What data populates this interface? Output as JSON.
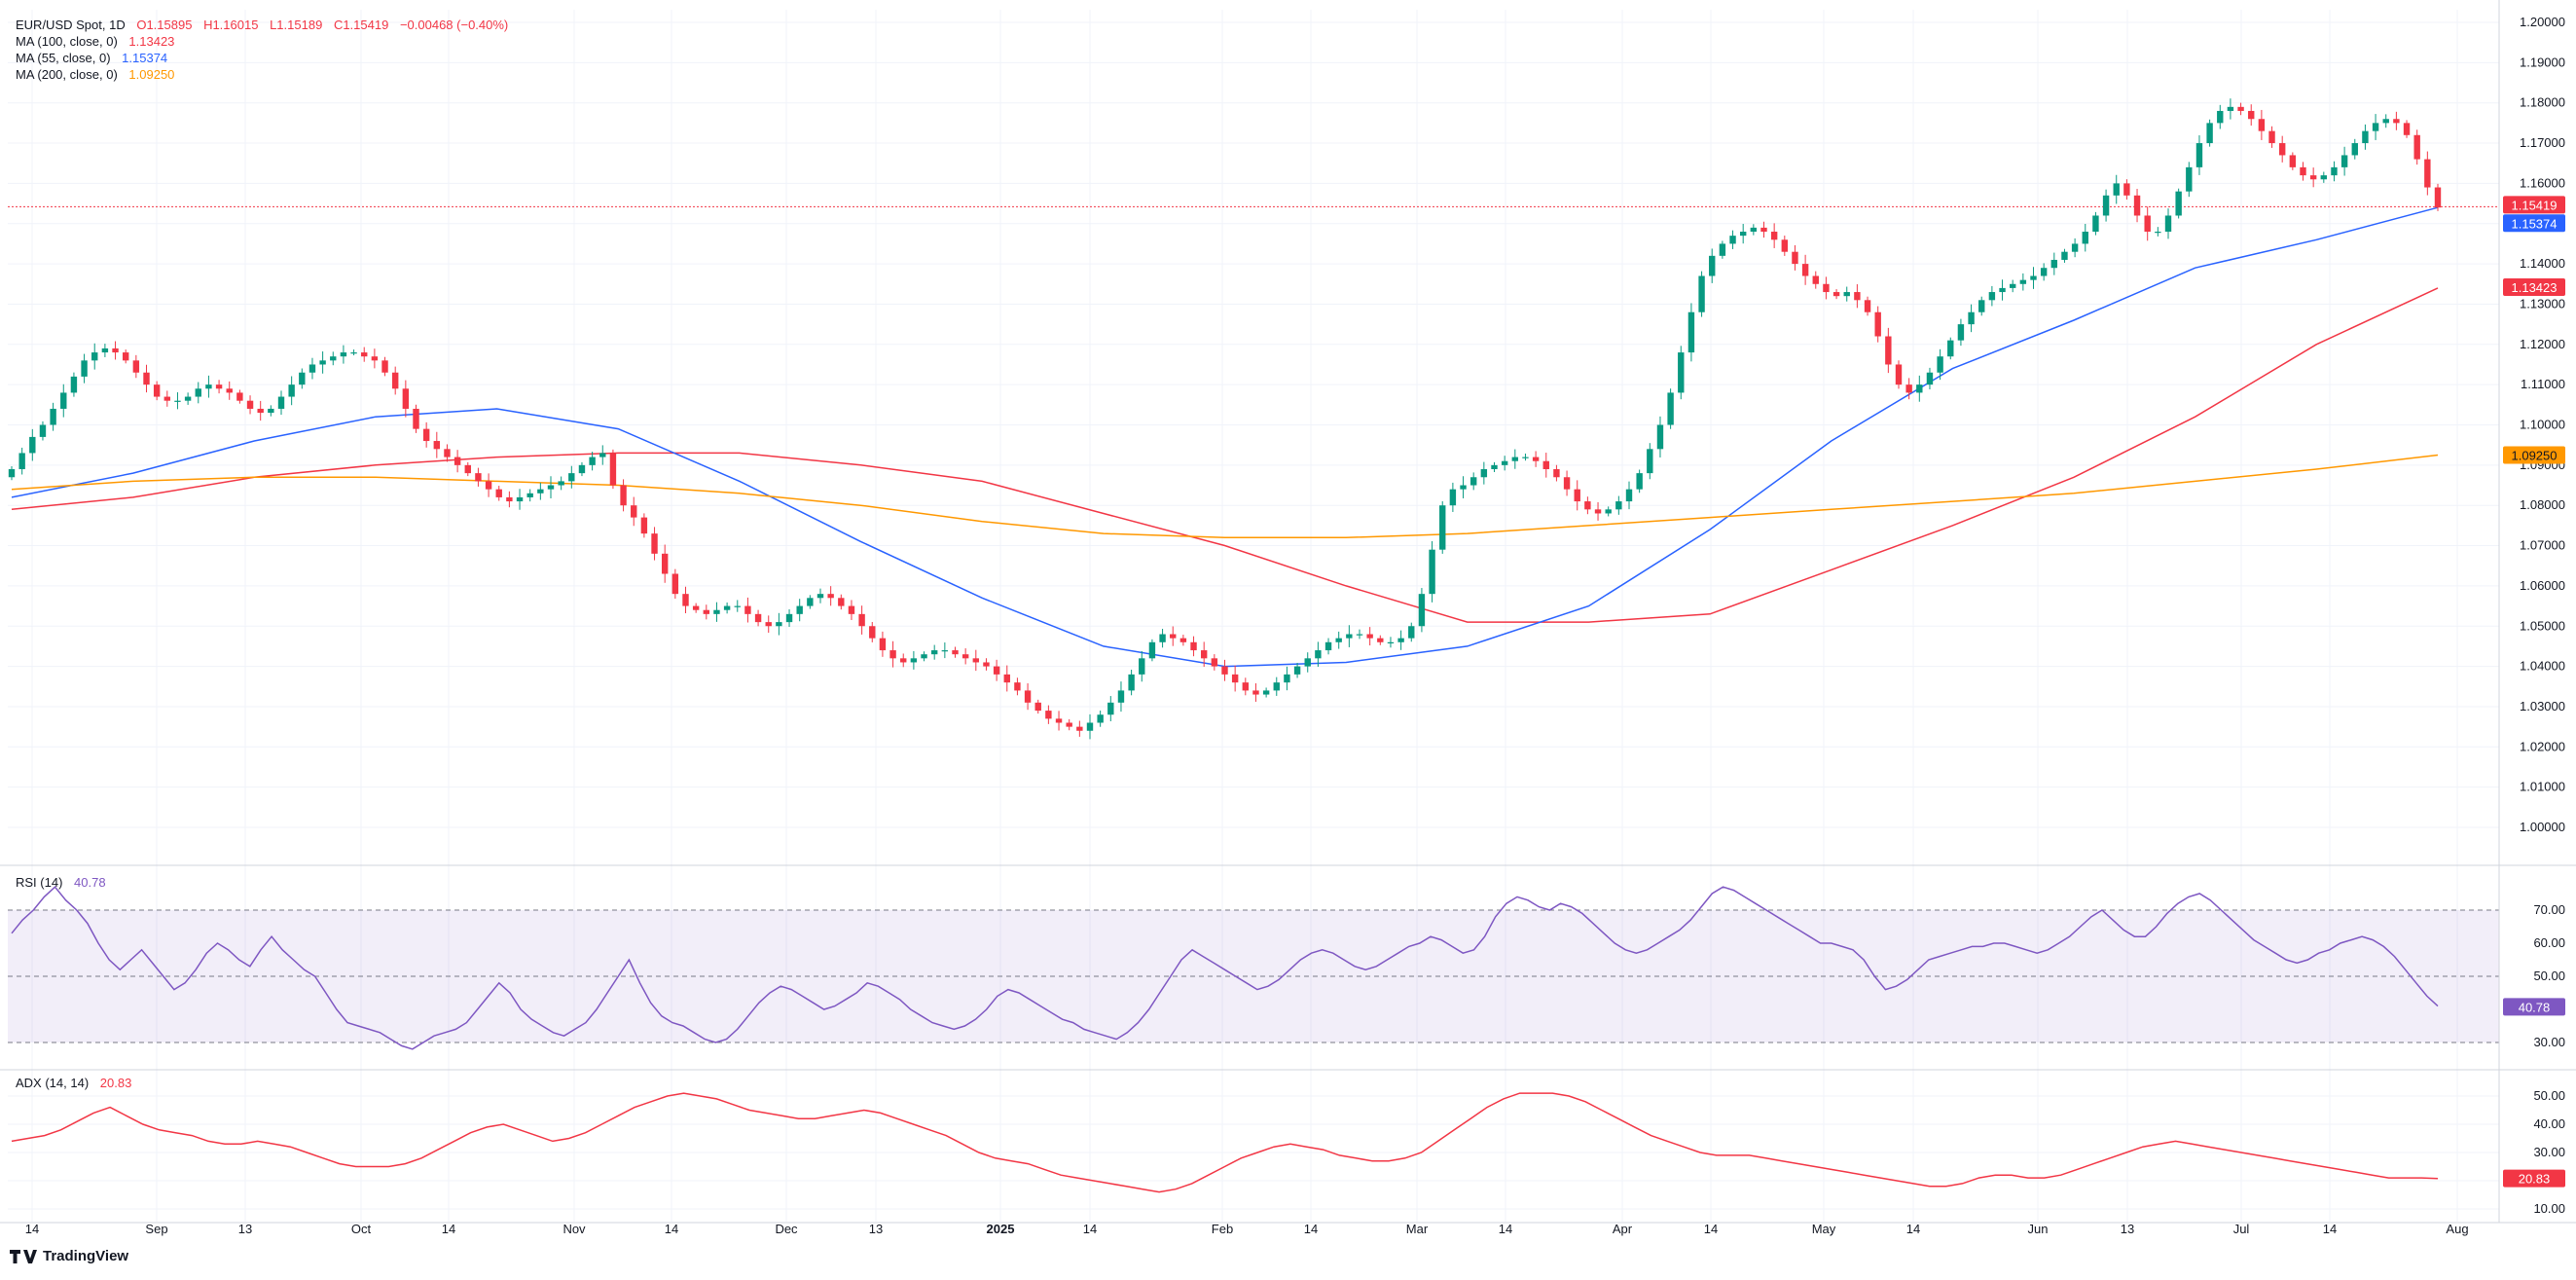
{
  "header": {
    "symbol": "EUR/USD Spot, 1D",
    "open": "O1.15895",
    "high": "H1.16015",
    "low": "L1.15189",
    "close": "C1.15419",
    "change": "−0.00468 (−0.40%)"
  },
  "indicators": {
    "ma100": {
      "label": "MA (100, close, 0)",
      "value": "1.13423",
      "color": "#f23645"
    },
    "ma55": {
      "label": "MA (55, close, 0)",
      "value": "1.15374",
      "color": "#2962ff"
    },
    "ma200": {
      "label": "MA (200, close, 0)",
      "value": "1.09250",
      "color": "#ff9800"
    },
    "rsi": {
      "label": "RSI (14)",
      "value": "40.78",
      "color": "#7e57c2"
    },
    "adx": {
      "label": "ADX (14, 14)",
      "value": "20.83",
      "color": "#f23645"
    }
  },
  "price_labels": {
    "last": "1.15419",
    "ma55": "1.15374",
    "ma100": "1.13423",
    "ma200": "1.09250"
  },
  "brand": {
    "name": "TradingView"
  },
  "colors": {
    "up": "#089981",
    "down": "#f23645",
    "rsi_band": "#7e57c2",
    "grid": "#f0f3fa"
  },
  "chart_data": [
    {
      "type": "candlestick",
      "title": "EUR/USD Spot, 1D",
      "x_ticks": [
        "14",
        "Sep",
        "13",
        "Oct",
        "14",
        "Nov",
        "14",
        "Dec",
        "13",
        "2025",
        "14",
        "Feb",
        "14",
        "Mar",
        "14",
        "Apr",
        "14",
        "May",
        "14",
        "Jun",
        "13",
        "Jul",
        "14",
        "Aug"
      ],
      "y_ticks": [
        "1.00000",
        "1.01000",
        "1.02000",
        "1.03000",
        "1.04000",
        "1.05000",
        "1.06000",
        "1.07000",
        "1.08000",
        "1.09000",
        "1.10000",
        "1.11000",
        "1.12000",
        "1.13000",
        "1.14000",
        "1.15000",
        "1.16000",
        "1.17000",
        "1.18000",
        "1.19000",
        "1.20000"
      ],
      "ylim": [
        0.995,
        1.2
      ],
      "close_path": [
        1.089,
        1.093,
        1.097,
        1.1,
        1.104,
        1.108,
        1.112,
        1.116,
        1.118,
        1.119,
        1.118,
        1.116,
        1.113,
        1.11,
        1.107,
        1.106,
        1.106,
        1.107,
        1.109,
        1.11,
        1.109,
        1.108,
        1.106,
        1.104,
        1.103,
        1.104,
        1.107,
        1.11,
        1.113,
        1.115,
        1.116,
        1.117,
        1.118,
        1.118,
        1.117,
        1.116,
        1.113,
        1.109,
        1.104,
        1.099,
        1.096,
        1.094,
        1.092,
        1.09,
        1.088,
        1.086,
        1.084,
        1.082,
        1.081,
        1.082,
        1.083,
        1.084,
        1.085,
        1.086,
        1.088,
        1.09,
        1.092,
        1.093,
        1.085,
        1.08,
        1.077,
        1.073,
        1.068,
        1.063,
        1.058,
        1.055,
        1.054,
        1.053,
        1.054,
        1.055,
        1.055,
        1.053,
        1.051,
        1.05,
        1.051,
        1.053,
        1.055,
        1.057,
        1.058,
        1.057,
        1.055,
        1.053,
        1.05,
        1.047,
        1.044,
        1.042,
        1.041,
        1.042,
        1.043,
        1.044,
        1.044,
        1.043,
        1.042,
        1.041,
        1.04,
        1.038,
        1.036,
        1.034,
        1.031,
        1.029,
        1.027,
        1.026,
        1.025,
        1.024,
        1.026,
        1.028,
        1.031,
        1.034,
        1.038,
        1.042,
        1.046,
        1.048,
        1.047,
        1.046,
        1.044,
        1.042,
        1.04,
        1.038,
        1.036,
        1.034,
        1.033,
        1.034,
        1.036,
        1.038,
        1.04,
        1.042,
        1.044,
        1.046,
        1.047,
        1.048,
        1.048,
        1.047,
        1.046,
        1.046,
        1.047,
        1.05,
        1.058,
        1.069,
        1.08,
        1.084,
        1.085,
        1.087,
        1.089,
        1.09,
        1.091,
        1.092,
        1.092,
        1.091,
        1.089,
        1.087,
        1.084,
        1.081,
        1.079,
        1.078,
        1.079,
        1.081,
        1.084,
        1.088,
        1.094,
        1.1,
        1.108,
        1.118,
        1.128,
        1.137,
        1.142,
        1.145,
        1.147,
        1.148,
        1.149,
        1.148,
        1.146,
        1.143,
        1.14,
        1.137,
        1.135,
        1.133,
        1.132,
        1.133,
        1.131,
        1.128,
        1.122,
        1.115,
        1.11,
        1.108,
        1.11,
        1.113,
        1.117,
        1.121,
        1.125,
        1.128,
        1.131,
        1.133,
        1.134,
        1.135,
        1.136,
        1.137,
        1.139,
        1.141,
        1.143,
        1.145,
        1.148,
        1.152,
        1.157,
        1.16,
        1.157,
        1.152,
        1.148,
        1.148,
        1.152,
        1.158,
        1.164,
        1.17,
        1.175,
        1.178,
        1.179,
        1.178,
        1.176,
        1.173,
        1.17,
        1.167,
        1.164,
        1.162,
        1.161,
        1.162,
        1.164,
        1.167,
        1.17,
        1.173,
        1.175,
        1.176,
        1.175,
        1.172,
        1.166,
        1.159,
        1.154
      ],
      "moving_averages": [
        {
          "name": "MA (100, close, 0)",
          "color": "#f23645",
          "x_frac": [
            0,
            0.05,
            0.1,
            0.15,
            0.2,
            0.25,
            0.3,
            0.35,
            0.4,
            0.45,
            0.5,
            0.55,
            0.6,
            0.65,
            0.7,
            0.75,
            0.8,
            0.85,
            0.9,
            0.95,
            1.0
          ],
          "y": [
            1.079,
            1.082,
            1.087,
            1.09,
            1.092,
            1.093,
            1.093,
            1.09,
            1.086,
            1.078,
            1.07,
            1.06,
            1.051,
            1.051,
            1.053,
            1.064,
            1.075,
            1.087,
            1.102,
            1.12,
            1.134
          ]
        },
        {
          "name": "MA (55, close, 0)",
          "color": "#2962ff",
          "x_frac": [
            0,
            0.05,
            0.1,
            0.15,
            0.2,
            0.25,
            0.3,
            0.35,
            0.4,
            0.45,
            0.5,
            0.55,
            0.6,
            0.65,
            0.7,
            0.75,
            0.8,
            0.85,
            0.9,
            0.95,
            1.0
          ],
          "y": [
            1.082,
            1.088,
            1.096,
            1.102,
            1.104,
            1.099,
            1.086,
            1.071,
            1.057,
            1.045,
            1.04,
            1.041,
            1.045,
            1.055,
            1.074,
            1.096,
            1.114,
            1.126,
            1.139,
            1.146,
            1.154
          ]
        },
        {
          "name": "MA (200, close, 0)",
          "color": "#ff9800",
          "x_frac": [
            0,
            0.05,
            0.1,
            0.15,
            0.2,
            0.25,
            0.3,
            0.35,
            0.4,
            0.45,
            0.5,
            0.55,
            0.6,
            0.65,
            0.7,
            0.75,
            0.8,
            0.85,
            0.9,
            0.95,
            1.0
          ],
          "y": [
            1.084,
            1.086,
            1.087,
            1.087,
            1.086,
            1.085,
            1.083,
            1.08,
            1.076,
            1.073,
            1.072,
            1.072,
            1.073,
            1.075,
            1.077,
            1.079,
            1.081,
            1.083,
            1.086,
            1.089,
            1.0925
          ]
        }
      ]
    },
    {
      "type": "line",
      "title": "RSI (14)",
      "y_ticks": [
        "30.00",
        "40.00",
        "50.00",
        "60.00",
        "70.00"
      ],
      "ylim": [
        26,
        80
      ],
      "bands": [
        30,
        50,
        70
      ],
      "values": [
        63,
        67,
        70,
        74,
        77,
        73,
        70,
        66,
        60,
        55,
        52,
        55,
        58,
        54,
        50,
        46,
        48,
        52,
        57,
        60,
        58,
        55,
        53,
        58,
        62,
        58,
        55,
        52,
        50,
        45,
        40,
        36,
        35,
        34,
        33,
        31,
        29,
        28,
        30,
        32,
        33,
        34,
        36,
        40,
        44,
        48,
        45,
        40,
        37,
        35,
        33,
        32,
        34,
        36,
        40,
        45,
        50,
        55,
        48,
        42,
        38,
        36,
        35,
        33,
        31,
        30,
        31,
        34,
        38,
        42,
        45,
        47,
        46,
        44,
        42,
        40,
        41,
        43,
        45,
        48,
        47,
        45,
        43,
        40,
        38,
        36,
        35,
        34,
        35,
        37,
        40,
        44,
        46,
        45,
        43,
        41,
        39,
        37,
        36,
        34,
        33,
        32,
        31,
        33,
        36,
        40,
        45,
        50,
        55,
        58,
        56,
        54,
        52,
        50,
        48,
        46,
        47,
        49,
        52,
        55,
        57,
        58,
        57,
        55,
        53,
        52,
        53,
        55,
        57,
        59,
        60,
        62,
        61,
        59,
        57,
        58,
        62,
        68,
        72,
        74,
        73,
        71,
        70,
        72,
        71,
        69,
        66,
        63,
        60,
        58,
        57,
        58,
        60,
        62,
        64,
        67,
        71,
        75,
        77,
        76,
        74,
        72,
        70,
        68,
        66,
        64,
        62,
        60,
        60,
        59,
        58,
        55,
        50,
        46,
        47,
        49,
        52,
        55,
        56,
        57,
        58,
        59,
        59,
        60,
        60,
        59,
        58,
        57,
        58,
        60,
        62,
        65,
        68,
        70,
        67,
        64,
        62,
        62,
        65,
        69,
        72,
        74,
        75,
        73,
        70,
        67,
        64,
        61,
        59,
        57,
        55,
        54,
        55,
        57,
        58,
        60,
        61,
        62,
        61,
        59,
        56,
        52,
        48,
        44,
        41
      ]
    },
    {
      "type": "line",
      "title": "ADX (14, 14)",
      "y_ticks": [
        "10.00",
        "20.00",
        "30.00",
        "40.00",
        "50.00"
      ],
      "ylim": [
        7,
        55
      ],
      "values": [
        34,
        35,
        36,
        38,
        41,
        44,
        46,
        43,
        40,
        38,
        37,
        36,
        34,
        33,
        33,
        34,
        33,
        32,
        30,
        28,
        26,
        25,
        25,
        25,
        26,
        28,
        31,
        34,
        37,
        39,
        40,
        38,
        36,
        34,
        35,
        37,
        40,
        43,
        46,
        48,
        50,
        51,
        50,
        49,
        47,
        45,
        44,
        43,
        42,
        42,
        43,
        44,
        45,
        44,
        42,
        40,
        38,
        36,
        33,
        30,
        28,
        27,
        26,
        24,
        22,
        21,
        20,
        19,
        18,
        17,
        16,
        17,
        19,
        22,
        25,
        28,
        30,
        32,
        33,
        32,
        31,
        29,
        28,
        27,
        27,
        28,
        30,
        34,
        38,
        42,
        46,
        49,
        51,
        51,
        51,
        50,
        48,
        45,
        42,
        39,
        36,
        34,
        32,
        30,
        29,
        29,
        29,
        28,
        27,
        26,
        25,
        24,
        23,
        22,
        21,
        20,
        19,
        18,
        18,
        19,
        21,
        22,
        22,
        21,
        21,
        22,
        24,
        26,
        28,
        30,
        32,
        33,
        34,
        33,
        32,
        31,
        30,
        29,
        28,
        27,
        26,
        25,
        24,
        23,
        22,
        21,
        21,
        21,
        20.8
      ]
    }
  ]
}
